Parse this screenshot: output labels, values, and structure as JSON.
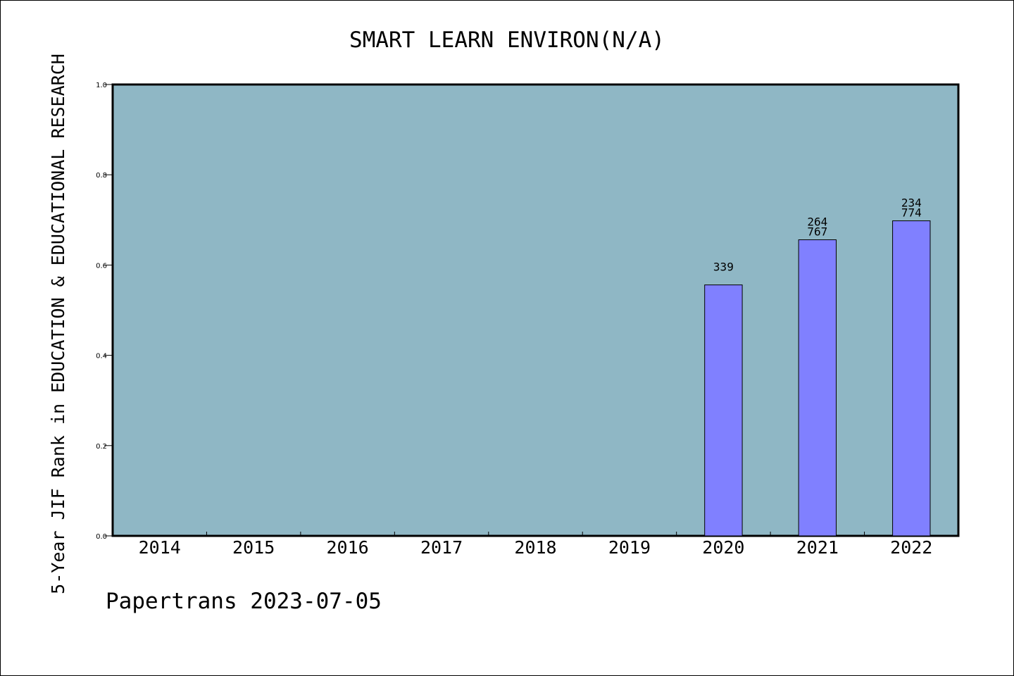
{
  "chart_data": {
    "type": "bar",
    "title": "SMART LEARN ENVIRON(N/A)",
    "xlabel": "",
    "ylabel": "5-Year JIF Rank in EDUCATION & EDUCATIONAL RESEARCH",
    "categories": [
      "2014",
      "2015",
      "2016",
      "2017",
      "2018",
      "2019",
      "2020",
      "2021",
      "2022"
    ],
    "values": [
      null,
      null,
      null,
      null,
      null,
      null,
      0.556,
      0.656,
      0.698
    ],
    "bar_labels": [
      [],
      [],
      [],
      [],
      [],
      [],
      [
        "339"
      ],
      [
        "264",
        "767"
      ],
      [
        "234",
        "774"
      ]
    ],
    "ylim": [
      0,
      1.0
    ],
    "yticks": [
      "0.0",
      "0.2",
      "0.4",
      "0.6",
      "0.8",
      "1.0"
    ],
    "grid": false,
    "legend": "none",
    "colors": {
      "plot_background": "#8fb7c5",
      "bar_fill": "#8080ff",
      "bar_stroke": "#000000"
    }
  },
  "footer": {
    "text": "Papertrans 2023-07-05"
  }
}
